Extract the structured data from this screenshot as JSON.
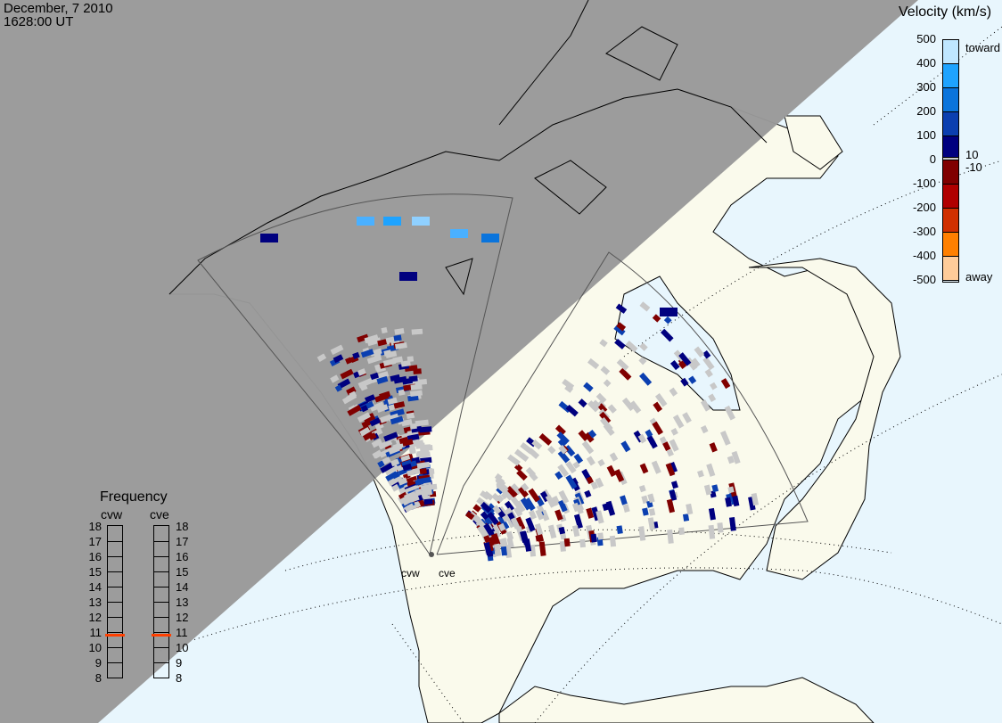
{
  "title": {
    "date": "December, 7 2010",
    "time": "1628:00 UT"
  },
  "colors": {
    "night": "#999999",
    "ocean": "#e8f6fd",
    "land": "#fafaec",
    "ground_scatter": "#c8c8c8",
    "freq_marker": "#ff4000"
  },
  "velocity_scale": {
    "title": "Velocity (km/s)",
    "ticks": [
      "500",
      "400",
      "300",
      "200",
      "100",
      "0",
      "-100",
      "-200",
      "-300",
      "-400",
      "-500"
    ],
    "toward_label": "toward",
    "away_label": "away",
    "small_labels": [
      "10",
      "-10"
    ],
    "colors_top_to_bottom": [
      "#bfe6ff",
      "#1ea3ff",
      "#0a74dc",
      "#0b3fb0",
      "#00007f",
      "#c8c8c8",
      "#800000",
      "#b00000",
      "#d03000",
      "#ff8000",
      "#ffcc99"
    ]
  },
  "frequency": {
    "title": "Frequency",
    "radars": [
      {
        "name": "cvw",
        "value_mhz": 10.8
      },
      {
        "name": "cve",
        "value_mhz": 10.8
      }
    ],
    "ticks": [
      "18",
      "17",
      "16",
      "15",
      "14",
      "13",
      "12",
      "11",
      "10",
      "9",
      "8"
    ]
  },
  "radar_sites": [
    {
      "name": "cvw"
    },
    {
      "name": "cve"
    }
  ]
}
